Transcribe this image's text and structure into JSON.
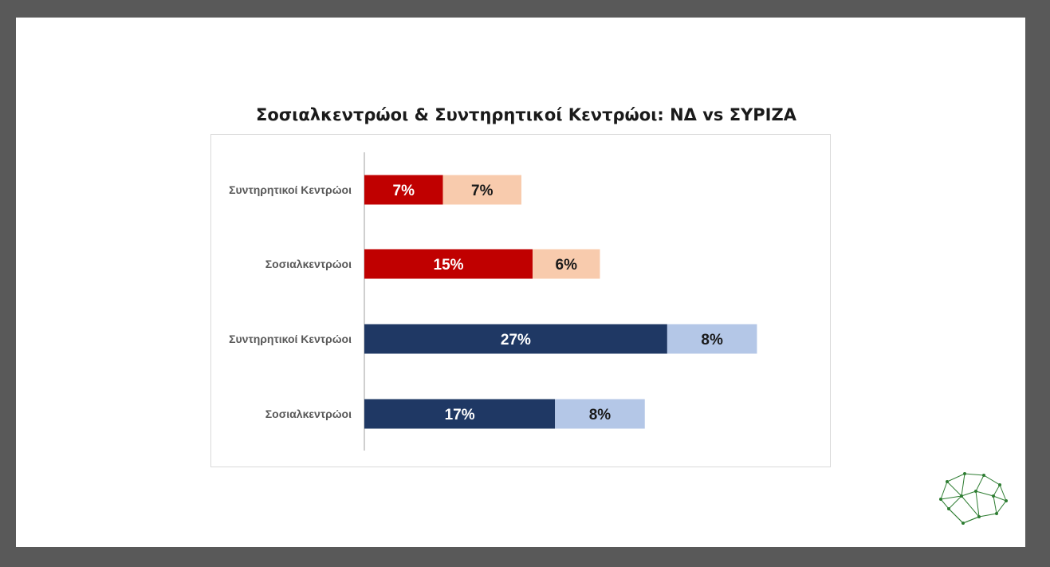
{
  "chart_data": {
    "type": "bar",
    "orientation": "horizontal",
    "stacked": true,
    "title": "Σοσιαλκεντρώοι & Συντηρητικοί Κεντρώοι: ΝΔ vs ΣΥΡΙΖΑ",
    "categories": [
      "Συντηρητικοί Κεντρώοι",
      "Σοσιαλκεντρώοι",
      "Συντηρητικοί Κεντρώοι",
      "Σοσιαλκεντρώοι"
    ],
    "rows": [
      {
        "label": "Συντηρητικοί Κεντρώοι",
        "values": [
          7,
          7
        ],
        "labels": [
          "7%",
          "7%"
        ],
        "colors": [
          "#c00000",
          "#f8cbad"
        ],
        "text_colors": [
          "#ffffff",
          "#1a1a1a"
        ]
      },
      {
        "label": "Σοσιαλκεντρώοι",
        "values": [
          15,
          6
        ],
        "labels": [
          "15%",
          "6%"
        ],
        "colors": [
          "#c00000",
          "#f8cbad"
        ],
        "text_colors": [
          "#ffffff",
          "#1a1a1a"
        ]
      },
      {
        "label": "Συντηρητικοί Κεντρώοι",
        "values": [
          27,
          8
        ],
        "labels": [
          "27%",
          "8%"
        ],
        "colors": [
          "#1f3864",
          "#b4c7e7"
        ],
        "text_colors": [
          "#ffffff",
          "#1a1a1a"
        ]
      },
      {
        "label": "Σοσιαλκεντρώοι",
        "values": [
          17,
          8
        ],
        "labels": [
          "17%",
          "8%"
        ],
        "colors": [
          "#1f3864",
          "#b4c7e7"
        ],
        "text_colors": [
          "#ffffff",
          "#1a1a1a"
        ]
      }
    ],
    "xlim": [
      0,
      45
    ],
    "grid": false,
    "legend": "none"
  },
  "logo": {
    "icon": "network-brain-icon",
    "color": "#2e7d32"
  }
}
